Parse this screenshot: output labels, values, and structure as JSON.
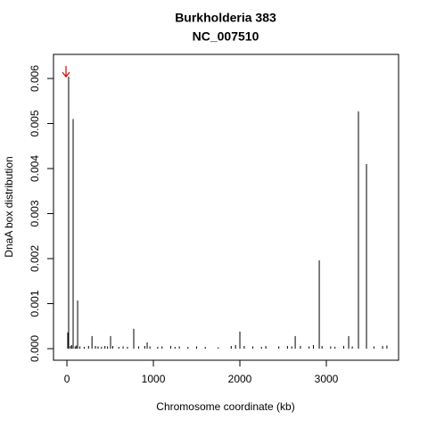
{
  "chart_data": {
    "type": "spike",
    "title": "Burkholderia 383",
    "subtitle": "NC_007510",
    "x_label": "Chromosome coordinate (kb)",
    "y_label": "DnaA box distribution",
    "color": "#000000",
    "xlim": [
      -155,
      3835
    ],
    "ylim": [
      -0.000257,
      0.006535
    ],
    "xticks": [
      0,
      1000,
      2000,
      3000
    ],
    "yticks": [
      {
        "value": 0,
        "label": "0.000"
      },
      {
        "value": 0.001,
        "label": "0.001"
      },
      {
        "value": 0.002,
        "label": "0.002"
      },
      {
        "value": 0.003,
        "label": "0.003"
      },
      {
        "value": 0.004,
        "label": "0.004"
      },
      {
        "value": 0.005,
        "label": "0.005"
      },
      {
        "value": 0.006,
        "label": "0.006"
      }
    ],
    "x": [
      10,
      20,
      40,
      55,
      72,
      95,
      110,
      124,
      150,
      200,
      250,
      290,
      330,
      360,
      400,
      440,
      470,
      505,
      530,
      600,
      650,
      700,
      773,
      830,
      900,
      928,
      960,
      1050,
      1100,
      1200,
      1250,
      1300,
      1400,
      1500,
      1600,
      1750,
      1900,
      1950,
      2000,
      2050,
      2150,
      2250,
      2300,
      2450,
      2550,
      2600,
      2640,
      2700,
      2800,
      2850,
      2918,
      2950,
      3050,
      3100,
      3200,
      3258,
      3300,
      3371,
      3464,
      3550,
      3650,
      3700
    ],
    "values": [
      0.00036,
      0.00604,
      6e-05,
      8e-05,
      0.0051,
      5e-05,
      7e-05,
      0.00107,
      5e-05,
      4e-05,
      6e-05,
      0.00028,
      6e-05,
      5e-05,
      4e-05,
      6e-05,
      5e-05,
      0.00028,
      6e-05,
      4e-05,
      5e-05,
      4e-05,
      0.00044,
      5e-05,
      6e-05,
      0.00014,
      5e-05,
      4e-05,
      5e-05,
      6e-05,
      4e-05,
      5e-05,
      4e-05,
      5e-05,
      4e-05,
      3e-05,
      6e-05,
      8e-05,
      0.00038,
      6e-05,
      5e-05,
      4e-05,
      6e-05,
      5e-05,
      6e-05,
      5e-05,
      0.00028,
      6e-05,
      5e-05,
      8e-05,
      0.00196,
      6e-05,
      5e-05,
      4e-05,
      6e-05,
      0.00028,
      5e-05,
      0.00527,
      0.0041,
      5e-05,
      6e-05,
      7e-05
    ]
  }
}
